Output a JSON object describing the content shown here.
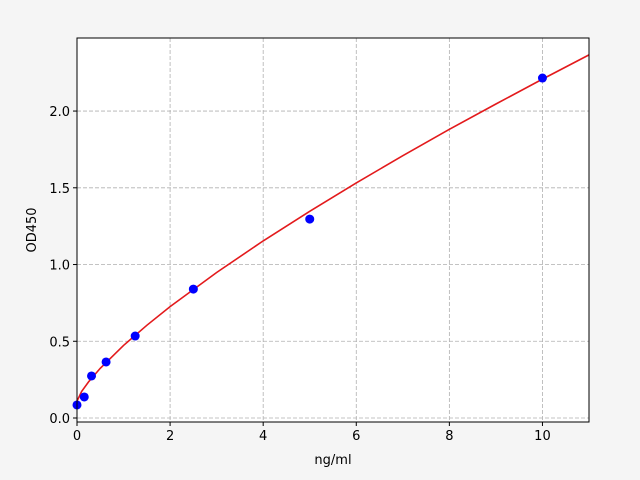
{
  "chart_data": {
    "type": "scatter",
    "title": "",
    "xlabel": "ng/ml",
    "ylabel": "OD450",
    "xlim": [
      0,
      11
    ],
    "ylim": [
      -0.026,
      2.476
    ],
    "grid": true,
    "xticks": [
      0,
      2,
      4,
      6,
      8,
      10
    ],
    "yticks": [
      0.0,
      0.5,
      1.0,
      1.5,
      2.0
    ],
    "xtick_labels": [
      "0",
      "2",
      "4",
      "6",
      "8",
      "10"
    ],
    "ytick_labels": [
      "0.0",
      "0.5",
      "1.0",
      "1.5",
      "2.0"
    ],
    "points": {
      "color": "#0000ff",
      "x": [
        0,
        0.156,
        0.312,
        0.625,
        1.25,
        2.5,
        5,
        10
      ],
      "y": [
        0.085,
        0.137,
        0.274,
        0.365,
        0.534,
        0.84,
        1.296,
        2.215
      ]
    },
    "fit_curve": {
      "color": "#e31a1c",
      "x": [
        0,
        0.1,
        0.25,
        0.5,
        1,
        1.5,
        2,
        3,
        4,
        5,
        6,
        7,
        8,
        9,
        10,
        11
      ],
      "y": [
        0.11,
        0.173,
        0.236,
        0.324,
        0.473,
        0.604,
        0.726,
        0.948,
        1.154,
        1.347,
        1.532,
        1.709,
        1.881,
        2.046,
        2.208,
        2.366
      ]
    }
  }
}
